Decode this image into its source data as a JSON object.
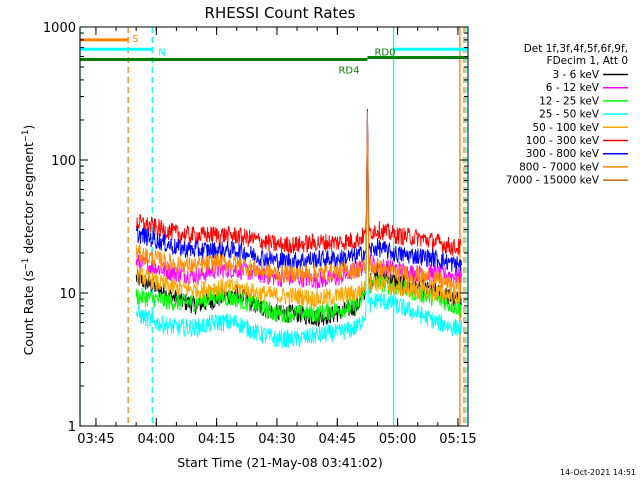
{
  "chart_data": {
    "type": "line",
    "title": "RHESSI Count Rates",
    "xlabel": "Start Time (21-May-08 03:41:02)",
    "ylabel_prefix": "Count Rate (s",
    "ylabel_sup": "−1",
    "ylabel_mid": " detector segment",
    "ylabel_sup2": "−1",
    "ylabel_suffix": ")",
    "y_scale": "log",
    "ylim": [
      1,
      1000
    ],
    "xlim": [
      "03:41:02",
      "05:17:30"
    ],
    "x_ticks": [
      "03:45",
      "04:00",
      "04:15",
      "04:30",
      "04:45",
      "05:00",
      "05:15"
    ],
    "y_ticks": [
      "1",
      "10",
      "100",
      "1000"
    ],
    "footer_timestamp": "14-Oct-2021 14:51",
    "legend_header": [
      "Det 1f,3f,4f,5f,6f,9f,",
      "FDecim 1, Att 0"
    ],
    "series": [
      {
        "name": "3 - 6 keV",
        "color": "#000000",
        "level": [
          13,
          11,
          9,
          8,
          9,
          10,
          8,
          7,
          7,
          6.5,
          7,
          8,
          12,
          14,
          12,
          11,
          10,
          9,
          8.5
        ],
        "x": [
          "03:55",
          "04:00",
          "04:05",
          "04:10",
          "04:15",
          "04:20",
          "04:25",
          "04:30",
          "04:35",
          "04:40",
          "04:45",
          "04:50",
          "04:53",
          "04:55",
          "05:00",
          "05:05",
          "05:10",
          "05:14",
          "05:16"
        ]
      },
      {
        "name": "6 - 12 keV",
        "color": "#ff00ff",
        "level": [
          17,
          15.5,
          14,
          13.5,
          15,
          15,
          14,
          13,
          13,
          12.5,
          13,
          15,
          17,
          16,
          15,
          14,
          14,
          13.5,
          13.5
        ],
        "x": [
          "03:55",
          "04:00",
          "04:05",
          "04:10",
          "04:15",
          "04:20",
          "04:25",
          "04:30",
          "04:35",
          "04:40",
          "04:45",
          "04:50",
          "04:53",
          "04:55",
          "05:00",
          "05:05",
          "05:10",
          "05:14",
          "05:16"
        ]
      },
      {
        "name": "12 - 25 keV",
        "color": "#00ff00",
        "level": [
          9.5,
          9,
          8.5,
          8.5,
          9.5,
          9,
          8,
          7,
          7,
          7,
          7.5,
          8,
          11,
          12,
          11,
          10,
          9,
          8,
          7.5
        ],
        "x": [
          "03:55",
          "04:00",
          "04:05",
          "04:10",
          "04:15",
          "04:20",
          "04:25",
          "04:30",
          "04:35",
          "04:40",
          "04:45",
          "04:50",
          "04:53",
          "04:55",
          "05:00",
          "05:05",
          "05:10",
          "05:14",
          "05:16"
        ]
      },
      {
        "name": "25 - 50 keV",
        "color": "#00ffff",
        "level": [
          7,
          6,
          5.5,
          5.5,
          6,
          6,
          5,
          4.5,
          4.5,
          4.8,
          5,
          5.5,
          8,
          9,
          8,
          7,
          6,
          5.5,
          5.5
        ],
        "x": [
          "03:55",
          "04:00",
          "04:05",
          "04:10",
          "04:15",
          "04:20",
          "04:25",
          "04:30",
          "04:35",
          "04:40",
          "04:45",
          "04:50",
          "04:53",
          "04:55",
          "05:00",
          "05:05",
          "05:10",
          "05:14",
          "05:16"
        ]
      },
      {
        "name": "50 - 100 keV",
        "color": "#ffa500",
        "level": [
          14,
          12,
          11,
          10.5,
          11,
          11,
          10,
          9.5,
          9.5,
          9,
          9.5,
          10,
          12,
          12,
          11,
          10.5,
          10,
          9.5,
          9.5
        ],
        "x": [
          "03:55",
          "04:00",
          "04:05",
          "04:10",
          "04:15",
          "04:20",
          "04:25",
          "04:30",
          "04:35",
          "04:40",
          "04:45",
          "04:50",
          "04:53",
          "04:55",
          "05:00",
          "05:05",
          "05:10",
          "05:14",
          "05:16"
        ]
      },
      {
        "name": "100 - 300 keV",
        "color": "#ff0000",
        "level": [
          34,
          31,
          28,
          27,
          27.5,
          27,
          25,
          23,
          23,
          24,
          24,
          25,
          29,
          30,
          27,
          26,
          24,
          22,
          22
        ],
        "x": [
          "03:55",
          "04:00",
          "04:05",
          "04:10",
          "04:15",
          "04:20",
          "04:25",
          "04:30",
          "04:35",
          "04:40",
          "04:45",
          "04:50",
          "04:53",
          "04:55",
          "05:00",
          "05:05",
          "05:10",
          "05:14",
          "05:16"
        ]
      },
      {
        "name": "300 - 800 keV",
        "color": "#0000ff",
        "level": [
          28,
          25,
          22,
          21,
          21,
          21,
          19,
          17.5,
          17.5,
          18,
          18,
          19,
          21,
          22,
          19.5,
          19,
          18,
          16.5,
          16.5
        ],
        "x": [
          "03:55",
          "04:00",
          "04:05",
          "04:10",
          "04:15",
          "04:20",
          "04:25",
          "04:30",
          "04:35",
          "04:40",
          "04:45",
          "04:50",
          "04:53",
          "04:55",
          "05:00",
          "05:05",
          "05:10",
          "05:14",
          "05:16"
        ]
      },
      {
        "name": "800 - 7000 keV",
        "color": "#ff8c00",
        "level": [
          20,
          18,
          16.5,
          16,
          17,
          16.5,
          15,
          14,
          14,
          14,
          14.5,
          15,
          16,
          15.5,
          14,
          13.5,
          12.5,
          11.5,
          11.5
        ],
        "x": [
          "03:55",
          "04:00",
          "04:05",
          "04:10",
          "04:15",
          "04:20",
          "04:25",
          "04:30",
          "04:35",
          "04:40",
          "04:45",
          "04:50",
          "04:53",
          "04:55",
          "05:00",
          "05:05",
          "05:10",
          "05:14",
          "05:16"
        ]
      },
      {
        "name": "7000 - 15000 keV",
        "color": "#cc6600",
        "level": [],
        "x": []
      }
    ],
    "flare_spike": {
      "time": "04:52:30",
      "peak_value": 250
    },
    "state_bars": [
      {
        "label": "S",
        "color": "#ff8000",
        "start": "03:41:02",
        "end": "03:53:00",
        "value": 800
      },
      {
        "label": "N",
        "color": "#00ffff",
        "start": "03:41:02",
        "end": "03:59:00",
        "value": 680
      },
      {
        "label": "N",
        "color": "#00ffff",
        "start": "04:59:00",
        "end": "05:17:30",
        "value": 680
      },
      {
        "label": "RD4",
        "color": "#008000",
        "start": "03:41:02",
        "end": "04:52:30",
        "value": 570
      },
      {
        "label": "RD0",
        "color": "#008000",
        "start": "04:52:30",
        "end": "05:17:30",
        "value": 590
      }
    ],
    "vertical_markers": [
      {
        "time": "03:41:02",
        "color": "#00ffff",
        "style": "solid"
      },
      {
        "time": "03:53:00",
        "color": "#ff8000",
        "style": "dashed"
      },
      {
        "time": "03:59:00",
        "color": "#00ffff",
        "style": "dashed"
      },
      {
        "time": "04:59:00",
        "color": "#00ffff",
        "style": "solid"
      },
      {
        "time": "05:15:30",
        "color": "#ff8000",
        "style": "solid"
      },
      {
        "time": "05:16:30",
        "color": "#ff8000",
        "style": "dashed"
      },
      {
        "time": "05:17:00",
        "color": "#00ffff",
        "style": "dashed"
      }
    ]
  }
}
